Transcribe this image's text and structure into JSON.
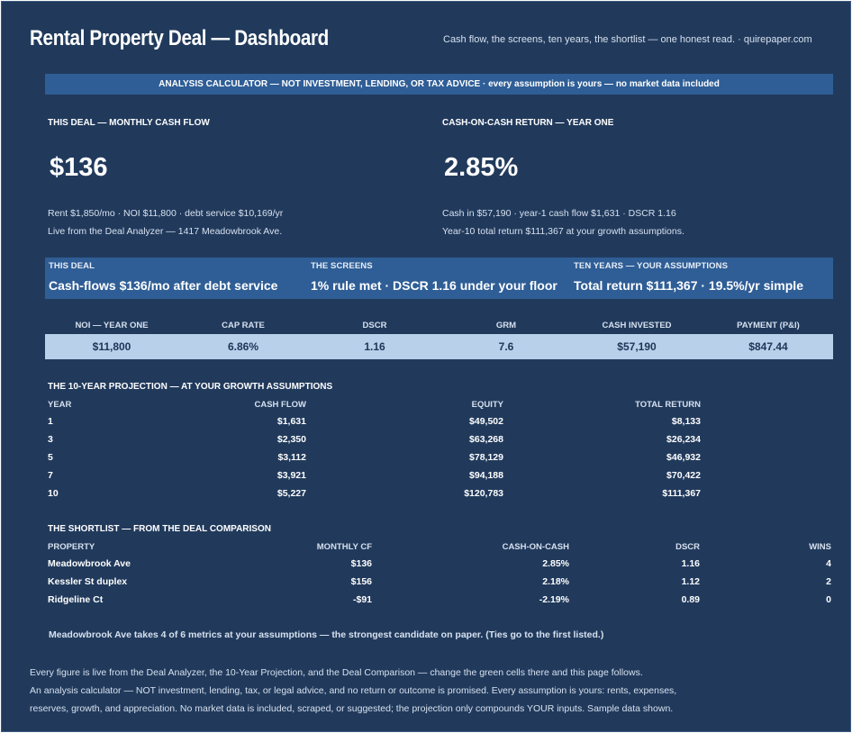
{
  "header": {
    "title": "Rental Property Deal — Dashboard",
    "tagline": "Cash flow, the screens, ten years, the shortlist — one honest read.  ·  quirepaper.com"
  },
  "banner": "ANALYSIS CALCULATOR — NOT INVESTMENT, LENDING, OR TAX ADVICE  ·  every assumption is yours — no market data included",
  "cash_flow": {
    "label": "THIS DEAL — MONTHLY CASH FLOW",
    "value": "$136",
    "line1": "Rent $1,850/mo  ·  NOI $11,800  ·  debt service $10,169/yr",
    "line2": "Live from the Deal Analyzer — 1417 Meadowbrook Ave."
  },
  "coc": {
    "label": "CASH-ON-CASH RETURN — YEAR ONE",
    "value": "2.85%",
    "line1": "Cash in $57,190  ·  year-1 cash flow $1,631  ·  DSCR 1.16",
    "line2": "Year-10 total return $111,367 at your growth assumptions."
  },
  "verdict": [
    {
      "label": "THIS DEAL",
      "value": "Cash-flows $136/mo after debt service"
    },
    {
      "label": "THE SCREENS",
      "value": "1% rule met  ·  DSCR 1.16 under your floor"
    },
    {
      "label": "TEN YEARS — YOUR ASSUMPTIONS",
      "value": "Total return $111,367  ·  19.5%/yr simple"
    }
  ],
  "kpis": [
    {
      "label": "NOI — YEAR ONE",
      "value": "$11,800"
    },
    {
      "label": "CAP RATE",
      "value": "6.86%"
    },
    {
      "label": "DSCR",
      "value": "1.16"
    },
    {
      "label": "GRM",
      "value": "7.6"
    },
    {
      "label": "CASH INVESTED",
      "value": "$57,190"
    },
    {
      "label": "PAYMENT (P&I)",
      "value": "$847.44"
    }
  ],
  "projection": {
    "title": "THE 10-YEAR PROJECTION — AT YOUR GROWTH ASSUMPTIONS",
    "headers": [
      "YEAR",
      "CASH FLOW",
      "EQUITY",
      "TOTAL RETURN"
    ],
    "rows": [
      [
        "1",
        "$1,631",
        "$49,502",
        "$8,133"
      ],
      [
        "3",
        "$2,350",
        "$63,268",
        "$26,234"
      ],
      [
        "5",
        "$3,112",
        "$78,129",
        "$46,932"
      ],
      [
        "7",
        "$3,921",
        "$94,188",
        "$70,422"
      ],
      [
        "10",
        "$5,227",
        "$120,783",
        "$111,367"
      ]
    ]
  },
  "shortlist": {
    "title": "THE SHORTLIST — FROM THE DEAL COMPARISON",
    "headers": [
      "PROPERTY",
      "MONTHLY CF",
      "CASH-ON-CASH",
      "DSCR",
      "WINS"
    ],
    "rows": [
      [
        "Meadowbrook Ave",
        "$136",
        "2.85%",
        "1.16",
        "4"
      ],
      [
        "Kessler St duplex",
        "$156",
        "2.18%",
        "1.12",
        "2"
      ],
      [
        "Ridgeline Ct",
        "-$91",
        "-2.19%",
        "0.89",
        "0"
      ]
    ],
    "note": "Meadowbrook Ave takes 4 of 6 metrics at your assumptions — the strongest candidate on paper. (Ties go to the first listed.)"
  },
  "footer": [
    "Every figure is live from the Deal Analyzer, the 10-Year Projection, and the Deal Comparison — change the green cells there and this page follows.",
    "An analysis calculator — NOT investment, lending, tax, or legal advice, and no return or outcome is promised. Every assumption is yours: rents, expenses,",
    "reserves, growth, and appreciation. No market data is included, scraped, or suggested; the projection only compounds YOUR inputs. Sample data shown."
  ]
}
